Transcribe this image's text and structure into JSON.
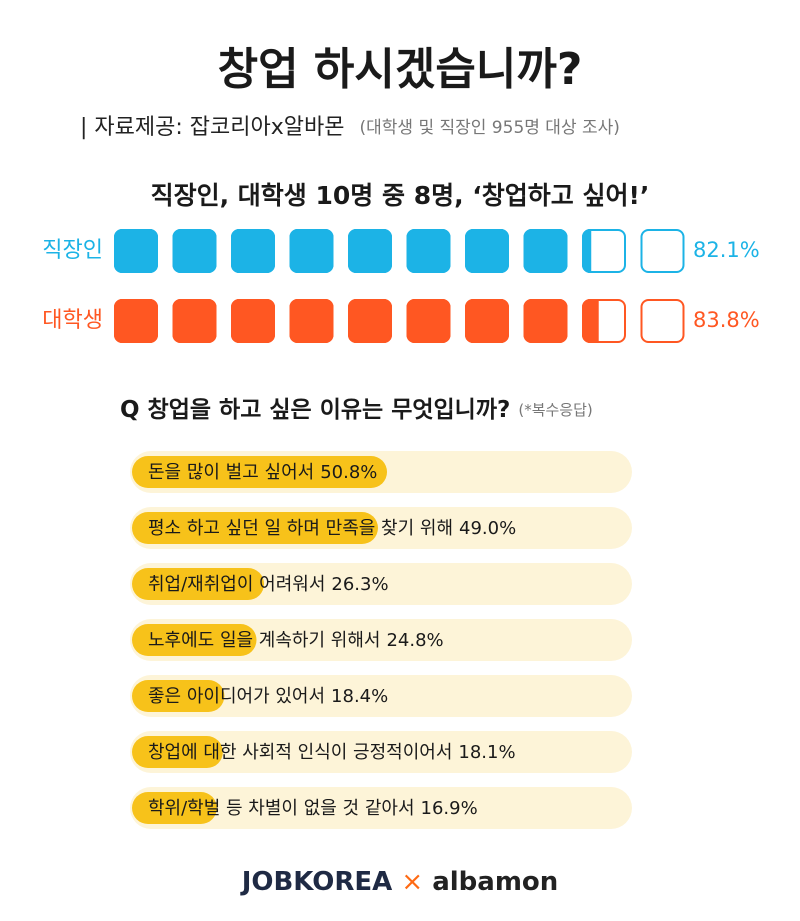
{
  "header": {
    "title": "창업 하시겠습니까?",
    "source": "| 자료제공: 잡코리아x알바몬",
    "note": "(대학생 및 직장인 955명 대상 조사)"
  },
  "chart_data": [
    {
      "type": "pictogram",
      "title": "직장인, 대학생 10명 중 8명, ‘창업하고 싶어!’",
      "categories": [
        "직장인",
        "대학생"
      ],
      "values": [
        82.1,
        83.8
      ],
      "value_labels": [
        "82.1%",
        "83.8%"
      ],
      "colors": [
        "#1cb3e6",
        "#ff5722"
      ],
      "xlim": [
        0,
        100
      ]
    },
    {
      "type": "bar",
      "title": "Q 창업을 하고 싶은 이유는 무엇입니까?",
      "subtitle": "(*복수응답)",
      "categories": [
        "돈을 많이 벌고 싶어서",
        "평소 하고 싶던 일 하며 만족을 찾기 위해",
        "취업/재취업이 어려워서",
        "노후에도 일을 계속하기 위해서",
        "좋은 아이디어가 있어서",
        "창업에 대한 사회적 인식이 긍정적이어서",
        "학위/학벌 등 차별이 없을 것 같아서"
      ],
      "values": [
        50.8,
        49.0,
        26.3,
        24.8,
        18.4,
        18.1,
        16.9
      ],
      "value_labels": [
        "50.8%",
        "49.0%",
        "26.3%",
        "24.8%",
        "18.4%",
        "18.1%",
        "16.9%"
      ],
      "color": "#f7c21a",
      "xlim": [
        0,
        100
      ]
    }
  ],
  "footer": {
    "left": "JOBKOREA",
    "sep": "×",
    "right": "albamon"
  }
}
